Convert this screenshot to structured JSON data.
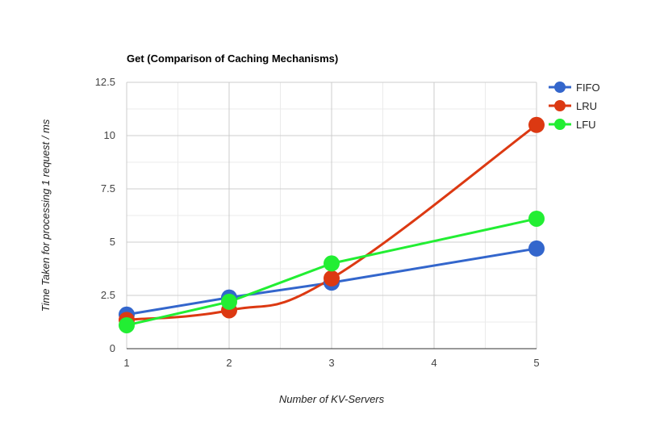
{
  "chart_data": {
    "type": "line",
    "title": "Get (Comparison of Caching Mechanisms)",
    "xlabel": "Number of KV-Servers",
    "ylabel": "Time Taken for processing 1 request / ms",
    "xlim": [
      1,
      5
    ],
    "ylim": [
      0,
      12.5
    ],
    "x_ticks": [
      "1",
      "2",
      "3",
      "4",
      "5"
    ],
    "y_ticks": [
      "0",
      "2.5",
      "5",
      "7.5",
      "10",
      "12.5"
    ],
    "grid": true,
    "legend_position": "right",
    "series": [
      {
        "name": "FIFO",
        "color": "#3366cc",
        "curve": "straight",
        "points": [
          [
            1,
            1.6
          ],
          [
            2,
            2.4
          ],
          [
            3,
            3.1
          ],
          [
            5,
            4.7
          ]
        ]
      },
      {
        "name": "LRU",
        "color": "#dc3912",
        "curve": "smooth",
        "points": [
          [
            1,
            1.35
          ],
          [
            2,
            1.8
          ],
          [
            3,
            3.3
          ],
          [
            5,
            10.5
          ]
        ]
      },
      {
        "name": "LFU",
        "color": "#22ee33",
        "curve": "straight",
        "points": [
          [
            1,
            1.1
          ],
          [
            2,
            2.2
          ],
          [
            3,
            4.0
          ],
          [
            5,
            6.1
          ]
        ]
      }
    ]
  }
}
